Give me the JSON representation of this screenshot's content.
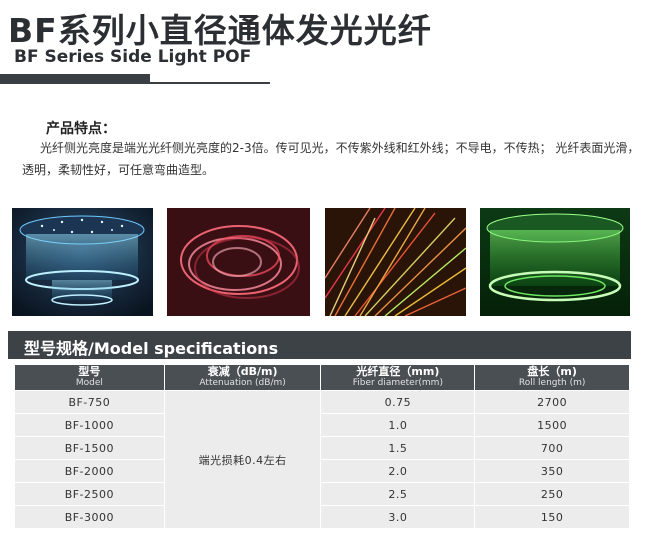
{
  "header": {
    "title_zh": "BF系列小直径通体发光光纤",
    "title_en": "BF Series Side Light POF"
  },
  "features": {
    "heading": "产品特点：",
    "text": "光纤侧光亮度是端光光纤侧光亮度的2-3倍。传可见光，不传紫外线和红外线；不导电，不传热；  光纤表面光滑，透明，柔韧性好，可任意弯曲造型。"
  },
  "specs": {
    "section_title": "型号规格/Model specifications",
    "columns": [
      {
        "zh": "型号",
        "en": "Model"
      },
      {
        "zh": "衰减（dB/m)",
        "en": "Attenuation (dB/m)"
      },
      {
        "zh": "光纤直径（mm)",
        "en": "Fiber diameter(mm)"
      },
      {
        "zh": "盘长（m)",
        "en": "Roll length (m)"
      }
    ],
    "attenuation": "端光损耗0.4左右",
    "rows": [
      {
        "model": "BF-750",
        "diameter": "0.75",
        "roll": "2700"
      },
      {
        "model": "BF-1000",
        "diameter": "1.0",
        "roll": "1500"
      },
      {
        "model": "BF-1500",
        "diameter": "1.5",
        "roll": "700"
      },
      {
        "model": "BF-2000",
        "diameter": "2.0",
        "roll": "350"
      },
      {
        "model": "BF-2500",
        "diameter": "2.5",
        "roll": "250"
      },
      {
        "model": "BF-3000",
        "diameter": "3.0",
        "roll": "150"
      }
    ]
  },
  "colors": {
    "header_bg": "#3d4247",
    "table_header_bg": "#4a4f54",
    "table_cell_bg": "#ececec"
  }
}
